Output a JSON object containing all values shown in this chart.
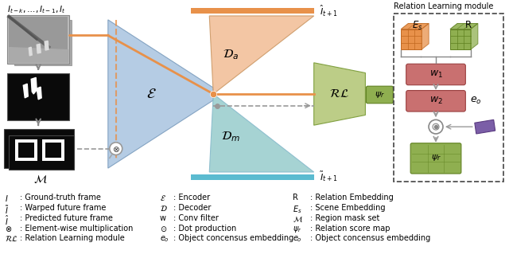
{
  "bg_color": "#ffffff",
  "orange": "#E8914A",
  "light_orange": "#F2C09A",
  "blue": "#A8C4E0",
  "teal": "#9DCFCF",
  "green_rl": "#B5C87A",
  "red_box": "#C97070",
  "orange_cube_fc": "#E8914A",
  "orange_cube_ec": "#C06820",
  "green_cube_fc": "#8FAF50",
  "green_cube_ec": "#5F8020",
  "green_psi": "#8FAF50",
  "purple_eo": "#7B5EA7",
  "gray_arrow": "#999999",
  "legend_left": [
    [
      "$I$",
      ": Ground-truth frame"
    ],
    [
      "$\\tilde{I}$",
      ": Warped future frame"
    ],
    [
      "$\\hat{I}$",
      ": Predicted future frame"
    ],
    [
      "$\\otimes$",
      ": Element-wise multiplication"
    ],
    [
      "$\\mathcal{RL}$",
      ": Relation Learning module"
    ]
  ],
  "legend_mid": [
    [
      "$\\mathcal{E}$",
      ": Encoder"
    ],
    [
      "$\\mathcal{D}$",
      ": Decoder"
    ],
    [
      "w",
      ": Conv filter"
    ],
    [
      "$\\odot$",
      ": Dot production"
    ]
  ],
  "legend_right": [
    [
      "R",
      ": Relation Embedding"
    ],
    [
      "$E_s$",
      ": Scene Embedding"
    ],
    [
      "$\\mathcal{M}$",
      ": Region mask set"
    ],
    [
      "$\\psi_r$",
      ": Relation score map"
    ],
    [
      "$e_o$",
      ": Object concensus embedding"
    ]
  ]
}
